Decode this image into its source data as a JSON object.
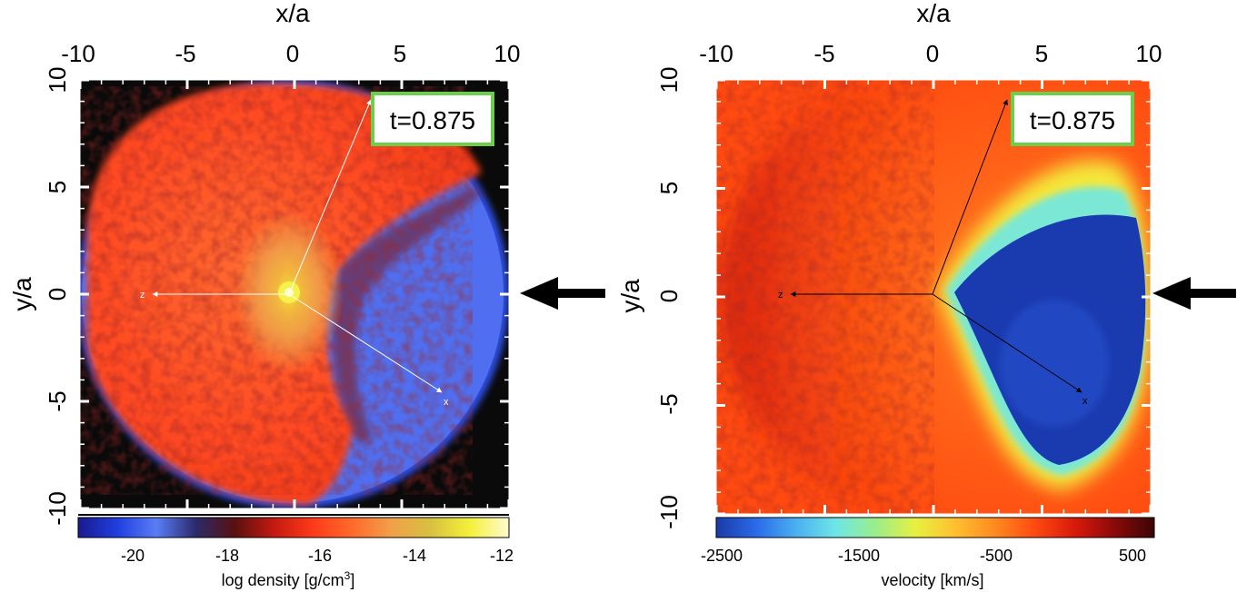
{
  "figure": {
    "panels": [
      {
        "id": "density",
        "x_label": "x/a",
        "y_label": "y/a",
        "x_ticks": [
          "-10",
          "-5",
          "0",
          "5",
          "10"
        ],
        "y_ticks": [
          "10",
          "5",
          "0",
          "-5",
          "-10"
        ],
        "time_label": "t=0.875",
        "vector_labels": {
          "z": "z",
          "x": "x"
        },
        "colorbar": {
          "label_main": "log density [g/cm",
          "label_sup": "3",
          "label_end": "]",
          "ticks": [
            "-20",
            "-18",
            "-16",
            "-14",
            "-12"
          ],
          "range": [
            -21,
            -12
          ],
          "colors": [
            "#1a1a8c",
            "#1f3fe0",
            "#5a7df5",
            "#2a2a6a",
            "#5a1010",
            "#c41a10",
            "#ff3a1a",
            "#ff6a2a",
            "#f0a04a",
            "#d8c040",
            "#f4f03a",
            "#fffbd0"
          ]
        }
      },
      {
        "id": "velocity",
        "x_label": "x/a",
        "y_label": "y/a",
        "x_ticks": [
          "-10",
          "-5",
          "0",
          "5",
          "10"
        ],
        "y_ticks": [
          "10",
          "5",
          "0",
          "-5",
          "-10"
        ],
        "time_label": "t=0.875",
        "vector_labels": {
          "z": "z",
          "x": "x"
        },
        "colorbar": {
          "label_main": "velocity [km/s]",
          "ticks": [
            "-2500",
            "-1500",
            "-500",
            "500"
          ],
          "range": [
            -2500,
            700
          ],
          "colors": [
            "#1a3aa8",
            "#2a6ae8",
            "#4ab0f0",
            "#6ee6e6",
            "#9aee8a",
            "#e8f040",
            "#ffc030",
            "#ff8a20",
            "#ff4a10",
            "#d81a0a",
            "#8a0a0a",
            "#3a0606"
          ]
        }
      }
    ],
    "colors": {
      "frame_box": "#6ccf4a",
      "arrow": "#000000"
    }
  }
}
